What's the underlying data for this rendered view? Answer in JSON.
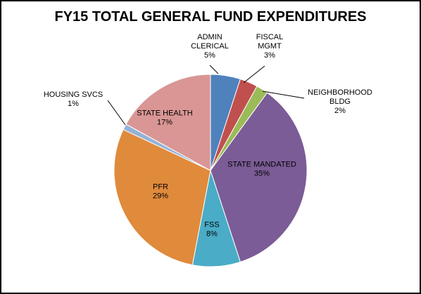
{
  "chart_data": {
    "type": "pie",
    "title": "FY15 TOTAL GENERAL FUND EXPENDITURES",
    "slices": [
      {
        "label": "ADMIN CLERICAL",
        "label_lines": [
          "ADMIN",
          "CLERICAL"
        ],
        "percent_label": "5%",
        "value": 5,
        "color": "#4f81bd"
      },
      {
        "label": "FISCAL MGMT",
        "label_lines": [
          "FISCAL",
          "MGMT"
        ],
        "percent_label": "3%",
        "value": 3,
        "color": "#c0504d"
      },
      {
        "label": "NEIGHBORHOOD BLDG",
        "label_lines": [
          "NEIGHBORHOOD",
          "BLDG"
        ],
        "percent_label": "2%",
        "value": 2,
        "color": "#9bbb59"
      },
      {
        "label": "STATE MANDATED",
        "label_lines": [
          "STATE MANDATED"
        ],
        "percent_label": "35%",
        "value": 35,
        "color": "#7b5c96"
      },
      {
        "label": "FSS",
        "label_lines": [
          "FSS"
        ],
        "percent_label": "8%",
        "value": 8,
        "color": "#4aacc6"
      },
      {
        "label": "PFR",
        "label_lines": [
          "PFR"
        ],
        "percent_label": "29%",
        "value": 29,
        "color": "#e08a3c"
      },
      {
        "label": "HOUSING SVCS",
        "label_lines": [
          "HOUSING SVCS"
        ],
        "percent_label": "1%",
        "value": 1,
        "color": "#95b3d7"
      },
      {
        "label": "STATE HEALTH",
        "label_lines": [
          "STATE HEALTH"
        ],
        "percent_label": "17%",
        "value": 17,
        "color": "#d99694"
      }
    ]
  }
}
